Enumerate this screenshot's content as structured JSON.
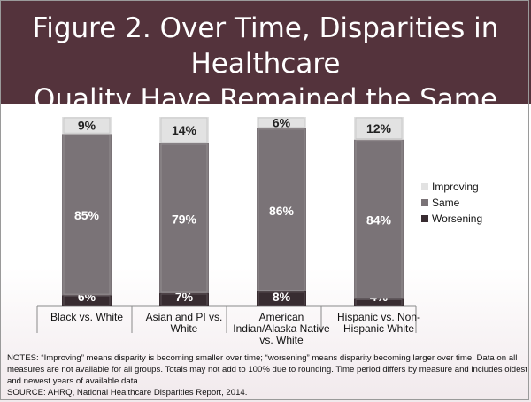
{
  "title_lines": [
    "Figure 2. Over Time, Disparities in Healthcare",
    "Quality Have Remained the Same"
  ],
  "colors": {
    "header": "#54333c",
    "improving": "#e2e2e2",
    "same": "#7a7377",
    "worsening": "#382c31"
  },
  "chart_data": {
    "type": "bar",
    "stacked": true,
    "categories": [
      [
        "Black vs. White"
      ],
      [
        "Asian and PI vs.",
        "White"
      ],
      [
        "American",
        "Indian/Alaska Native",
        "vs. White"
      ],
      [
        "Hispanic vs. Non-",
        "Hispanic White"
      ]
    ],
    "series": [
      {
        "name": "Worsening",
        "values": [
          6,
          7,
          8,
          4
        ],
        "labels": [
          "6%",
          "7%",
          "8%",
          "4%"
        ]
      },
      {
        "name": "Same",
        "values": [
          85,
          79,
          86,
          84
        ],
        "labels": [
          "85%",
          "79%",
          "86%",
          "84%"
        ]
      },
      {
        "name": "Improving",
        "values": [
          9,
          14,
          6,
          12
        ],
        "labels": [
          "9%",
          "14%",
          "6%",
          "12%"
        ]
      }
    ],
    "legend_order": [
      "Improving",
      "Same",
      "Worsening"
    ],
    "legend_position": "right",
    "ylim": [
      0,
      100
    ],
    "grid": false
  },
  "notes": "NOTES: “Improving” means disparity is becoming smaller over time; “worsening” means disparity becoming larger over time. Data on all measures are not available for all groups.  Totals may not add to 100% due to rounding.  Time period differs by measure and includes oldest and newest years of available data.",
  "source": "SOURCE: AHRQ, National Healthcare Disparities Report, 2014."
}
